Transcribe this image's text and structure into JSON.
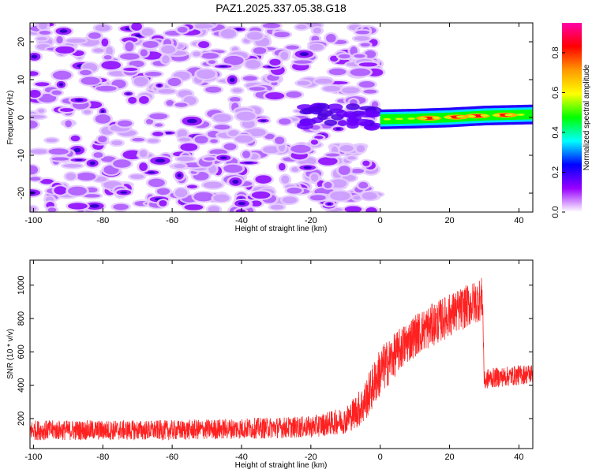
{
  "title": "PAZ1.2025.337.05.38.G18",
  "chart_data": [
    {
      "type": "heatmap",
      "name": "spectrogram",
      "xlabel": "Height of straight line (km)",
      "ylabel": "Frequency (Hz)",
      "xlim": [
        -101,
        44
      ],
      "ylim": [
        -25,
        25
      ],
      "xticks": [
        -100,
        -80,
        -60,
        -40,
        -20,
        0,
        20,
        40
      ],
      "yticks": [
        -20,
        -10,
        0,
        10,
        20
      ],
      "colorbar": {
        "label": "Normalized spectral amplitude",
        "range": [
          0,
          0.95
        ],
        "ticks": [
          0.0,
          0.2,
          0.4,
          0.6,
          0.8
        ],
        "colormap": [
          "#ffffff",
          "#9900ff",
          "#0000ff",
          "#00ffff",
          "#00ff00",
          "#ffff00",
          "#ff9900",
          "#ff0000",
          "#ff00aa"
        ]
      },
      "features": {
        "noise_region_km": [
          -101,
          -1
        ],
        "noise_amplitude_max": 0.2,
        "signal_line": {
          "x_start_km": 0,
          "x_end_km": 44,
          "frequency_hz": [
            [
              0,
              -0.5
            ],
            [
              10,
              -0.3
            ],
            [
              20,
              0
            ],
            [
              30,
              0.5
            ],
            [
              44,
              0.8
            ]
          ],
          "amplitude_peak": 0.95,
          "peaks_km": [
            14,
            22,
            28,
            36
          ]
        }
      }
    },
    {
      "type": "line",
      "name": "snr",
      "xlabel": "Height of straight line (km)",
      "ylabel": "SNR (10 * v/v)",
      "xlim": [
        -101,
        44
      ],
      "ylim": [
        20,
        1150
      ],
      "xticks": [
        -100,
        -80,
        -60,
        -40,
        -20,
        0,
        20,
        40
      ],
      "yticks": [
        200,
        400,
        600,
        800,
        1000
      ],
      "line_color": "#ff2020",
      "envelope": {
        "x": [
          -101,
          -60,
          -20,
          -10,
          -5,
          0,
          5,
          10,
          20,
          29.5,
          30,
          31,
          44
        ],
        "mean": [
          130,
          130,
          150,
          190,
          280,
          480,
          600,
          700,
          820,
          920,
          420,
          440,
          470
        ],
        "spread": [
          60,
          60,
          65,
          80,
          120,
          150,
          130,
          130,
          130,
          130,
          60,
          60,
          60
        ]
      }
    }
  ]
}
